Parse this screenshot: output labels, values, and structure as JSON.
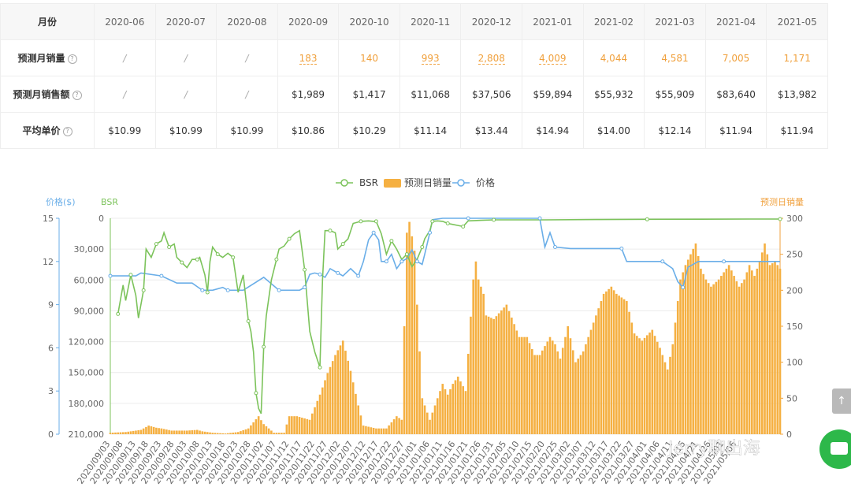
{
  "table": {
    "header_label": "月份",
    "months": [
      "2020-06",
      "2020-07",
      "2020-08",
      "2020-09",
      "2020-10",
      "2020-11",
      "2020-12",
      "2021-01",
      "2021-02",
      "2021-03",
      "2021-04",
      "2021-05"
    ],
    "rows": [
      {
        "label": "预测月销量",
        "help": "?",
        "values": [
          "/",
          "/",
          "/",
          "183",
          "140",
          "993",
          "2,808",
          "4,009",
          "4,044",
          "4,581",
          "7,005",
          "1,171"
        ],
        "dashed": [
          false,
          false,
          false,
          true,
          false,
          true,
          true,
          true,
          false,
          false,
          false,
          false
        ],
        "orange": true
      },
      {
        "label": "预测月销售额",
        "help": "?",
        "values": [
          "/",
          "/",
          "/",
          "$1,989",
          "$1,417",
          "$11,068",
          "$37,506",
          "$59,894",
          "$55,932",
          "$55,909",
          "$83,640",
          "$13,982"
        ],
        "orange": false
      },
      {
        "label": "平均单价",
        "help": "?",
        "values": [
          "$10.99",
          "$10.99",
          "$10.99",
          "$10.86",
          "$10.29",
          "$11.14",
          "$13.44",
          "$14.94",
          "$14.00",
          "$12.14",
          "$11.94",
          "$11.94"
        ],
        "orange": false
      }
    ]
  },
  "chart_data": {
    "type": "bar",
    "legend": [
      "BSR",
      "预测日销量",
      "价格"
    ],
    "legend_placement": "top-center",
    "colors": {
      "bsr": "#7cc35b",
      "sales": "#f5b042",
      "price": "#6aaee8"
    },
    "axes": {
      "price": {
        "label": "价格($)",
        "min": 0,
        "max": 15,
        "ticks": [
          0,
          3,
          6,
          9,
          12,
          15
        ],
        "side": "left"
      },
      "bsr": {
        "label": "BSR",
        "min": 0,
        "max": 210000,
        "inverted": true,
        "ticks": [
          0,
          30000,
          60000,
          90000,
          120000,
          150000,
          180000,
          210000
        ],
        "tick_labels": [
          "0",
          "30,000",
          "60,000",
          "90,000",
          "120,000",
          "150,000",
          "180,000",
          "210,000"
        ],
        "side": "left"
      },
      "sales": {
        "label": "预测日销量",
        "min": 0,
        "max": 300,
        "ticks": [
          0,
          50,
          100,
          150,
          200,
          250,
          300
        ],
        "side": "right"
      }
    },
    "x_start": "2020/09/03",
    "x_end": "2021/05/13",
    "x_tick_labels": [
      "2020/09/03",
      "2020/09/08",
      "2020/09/13",
      "2020/09/18",
      "2020/09/23",
      "2020/09/28",
      "2020/10/03",
      "2020/10/08",
      "2020/10/13",
      "2020/10/18",
      "2020/10/23",
      "2020/10/28",
      "2020/11/02",
      "2020/11/07",
      "2020/11/12",
      "2020/11/17",
      "2020/11/22",
      "2020/11/27",
      "2020/12/02",
      "2020/12/07",
      "2020/12/12",
      "2020/12/17",
      "2020/12/22",
      "2020/12/27",
      "2021/01/01",
      "2021/01/06",
      "2021/01/11",
      "2021/01/16",
      "2021/01/21",
      "2021/01/26",
      "2021/01/31",
      "2021/02/05",
      "2021/02/10",
      "2021/02/15",
      "2021/02/20",
      "2021/02/25",
      "2021/03/02",
      "2021/03/07",
      "2021/03/12",
      "2021/03/17",
      "2021/03/22",
      "2021/03/27",
      "2021/04/01",
      "2021/04/06",
      "2021/04/11",
      "2021/04/16",
      "2021/04/21",
      "2021/04/26",
      "2021/05/01",
      "2021/05/06"
    ],
    "sales_bars": [
      [
        0,
        2
      ],
      [
        6,
        3
      ],
      [
        12,
        6
      ],
      [
        15,
        12
      ],
      [
        18,
        9
      ],
      [
        20,
        8
      ],
      [
        24,
        5
      ],
      [
        30,
        5
      ],
      [
        34,
        6
      ],
      [
        36,
        4
      ],
      [
        40,
        2
      ],
      [
        45,
        1
      ],
      [
        50,
        3
      ],
      [
        54,
        8
      ],
      [
        58,
        25
      ],
      [
        60,
        14
      ],
      [
        64,
        2
      ],
      [
        68,
        2
      ],
      [
        70,
        25
      ],
      [
        73,
        25
      ],
      [
        78,
        20
      ],
      [
        82,
        55
      ],
      [
        85,
        85
      ],
      [
        88,
        110
      ],
      [
        91,
        130
      ],
      [
        94,
        88
      ],
      [
        97,
        40
      ],
      [
        99,
        12
      ],
      [
        104,
        8
      ],
      [
        108,
        8
      ],
      [
        112,
        25
      ],
      [
        114,
        20
      ],
      [
        116,
        280
      ],
      [
        117,
        295
      ],
      [
        118,
        275
      ],
      [
        119,
        255
      ],
      [
        120,
        180
      ],
      [
        122,
        50
      ],
      [
        125,
        20
      ],
      [
        127,
        40
      ],
      [
        130,
        70
      ],
      [
        132,
        55
      ],
      [
        134,
        70
      ],
      [
        136,
        80
      ],
      [
        139,
        60
      ],
      [
        142,
        215
      ],
      [
        143,
        240
      ],
      [
        144,
        215
      ],
      [
        146,
        195
      ],
      [
        147,
        165
      ],
      [
        150,
        160
      ],
      [
        155,
        180
      ],
      [
        160,
        135
      ],
      [
        163,
        135
      ],
      [
        166,
        110
      ],
      [
        168,
        110
      ],
      [
        172,
        135
      ],
      [
        174,
        125
      ],
      [
        176,
        105
      ],
      [
        179,
        150
      ],
      [
        182,
        100
      ],
      [
        185,
        115
      ],
      [
        188,
        145
      ],
      [
        191,
        175
      ],
      [
        193,
        195
      ],
      [
        196,
        205
      ],
      [
        198,
        195
      ],
      [
        202,
        185
      ],
      [
        205,
        140
      ],
      [
        208,
        130
      ],
      [
        212,
        145
      ],
      [
        215,
        120
      ],
      [
        218,
        90
      ],
      [
        220,
        125
      ],
      [
        223,
        215
      ],
      [
        225,
        235
      ],
      [
        227,
        250
      ],
      [
        229,
        265
      ],
      [
        231,
        230
      ],
      [
        233,
        215
      ],
      [
        235,
        205
      ],
      [
        238,
        215
      ],
      [
        240,
        225
      ],
      [
        242,
        235
      ],
      [
        244,
        220
      ],
      [
        246,
        205
      ],
      [
        248,
        215
      ],
      [
        250,
        235
      ],
      [
        252,
        220
      ],
      [
        254,
        240
      ],
      [
        256,
        265
      ],
      [
        258,
        235
      ],
      [
        260,
        240
      ],
      [
        262,
        230
      ]
    ],
    "bsr_line": [
      [
        3,
        93000
      ],
      [
        5,
        65000
      ],
      [
        6,
        80000
      ],
      [
        8,
        55000
      ],
      [
        10,
        75000
      ],
      [
        11,
        97000
      ],
      [
        13,
        70000
      ],
      [
        14,
        30000
      ],
      [
        16,
        38000
      ],
      [
        18,
        25000
      ],
      [
        20,
        22000
      ],
      [
        21,
        14000
      ],
      [
        23,
        28000
      ],
      [
        25,
        25000
      ],
      [
        26,
        38000
      ],
      [
        28,
        43000
      ],
      [
        30,
        48000
      ],
      [
        32,
        40000
      ],
      [
        34,
        40000
      ],
      [
        35,
        38000
      ],
      [
        37,
        55000
      ],
      [
        38,
        72000
      ],
      [
        39,
        42000
      ],
      [
        40,
        28000
      ],
      [
        42,
        35000
      ],
      [
        44,
        38000
      ],
      [
        46,
        34000
      ],
      [
        48,
        38000
      ],
      [
        50,
        72000
      ],
      [
        52,
        55000
      ],
      [
        54,
        100000
      ],
      [
        55,
        110000
      ],
      [
        56,
        130000
      ],
      [
        57,
        170000
      ],
      [
        58,
        185000
      ],
      [
        59,
        190000
      ],
      [
        60,
        125000
      ],
      [
        61,
        95000
      ],
      [
        63,
        60000
      ],
      [
        65,
        40000
      ],
      [
        66,
        30000
      ],
      [
        68,
        27000
      ],
      [
        70,
        20000
      ],
      [
        72,
        15000
      ],
      [
        74,
        12000
      ],
      [
        76,
        50000
      ],
      [
        78,
        110000
      ],
      [
        80,
        130000
      ],
      [
        82,
        145000
      ],
      [
        83,
        60000
      ],
      [
        84,
        12000
      ],
      [
        86,
        12000
      ],
      [
        88,
        14000
      ],
      [
        89,
        30000
      ],
      [
        91,
        25000
      ],
      [
        93,
        20000
      ],
      [
        95,
        5000
      ],
      [
        98,
        3000
      ],
      [
        101,
        2500
      ],
      [
        103,
        3000
      ],
      [
        104,
        3000
      ],
      [
        106,
        15000
      ],
      [
        108,
        35000
      ],
      [
        110,
        22000
      ],
      [
        112,
        30000
      ],
      [
        114,
        40000
      ],
      [
        116,
        35000
      ],
      [
        118,
        47000
      ],
      [
        120,
        40000
      ],
      [
        122,
        28000
      ],
      [
        123,
        20000
      ],
      [
        125,
        12000
      ],
      [
        126,
        3000
      ],
      [
        128,
        2500
      ],
      [
        130,
        3000
      ],
      [
        132,
        5000
      ],
      [
        134,
        6000
      ],
      [
        136,
        7000
      ],
      [
        138,
        8000
      ],
      [
        140,
        2500
      ],
      [
        145,
        2000
      ],
      [
        150,
        1500
      ],
      [
        170,
        1500
      ],
      [
        190,
        1200
      ],
      [
        210,
        1000
      ],
      [
        230,
        900
      ],
      [
        250,
        800
      ],
      [
        262,
        800
      ]
    ],
    "price_line": [
      [
        0,
        11
      ],
      [
        10,
        11
      ],
      [
        12,
        11.2
      ],
      [
        20,
        11
      ],
      [
        26,
        10.5
      ],
      [
        32,
        10.5
      ],
      [
        36,
        10
      ],
      [
        40,
        10
      ],
      [
        44,
        10.2
      ],
      [
        46,
        10
      ],
      [
        52,
        10
      ],
      [
        60,
        10.9
      ],
      [
        66,
        10
      ],
      [
        70,
        10
      ],
      [
        74,
        10
      ],
      [
        76,
        10.2
      ],
      [
        78,
        11.1
      ],
      [
        80,
        11.2
      ],
      [
        82,
        11.1
      ],
      [
        84,
        10.9
      ],
      [
        86,
        11.5
      ],
      [
        89,
        11.2
      ],
      [
        91,
        11
      ],
      [
        94,
        11.5
      ],
      [
        97,
        11
      ],
      [
        99,
        12
      ],
      [
        101,
        13.5
      ],
      [
        103,
        14
      ],
      [
        105,
        13.5
      ],
      [
        106,
        12
      ],
      [
        108,
        12
      ],
      [
        110,
        12.5
      ],
      [
        112,
        11.5
      ],
      [
        114,
        12
      ],
      [
        116,
        12.2
      ],
      [
        118,
        12.8
      ],
      [
        120,
        12
      ],
      [
        122,
        11.8
      ],
      [
        123,
        12.5
      ],
      [
        125,
        14
      ],
      [
        126,
        14.9
      ],
      [
        130,
        15
      ],
      [
        140,
        15
      ],
      [
        150,
        15
      ],
      [
        160,
        15
      ],
      [
        168,
        15
      ],
      [
        170,
        13
      ],
      [
        172,
        14
      ],
      [
        174,
        13
      ],
      [
        180,
        12.9
      ],
      [
        190,
        12.9
      ],
      [
        200,
        12.9
      ],
      [
        202,
        12
      ],
      [
        208,
        12
      ],
      [
        216,
        12
      ],
      [
        220,
        11.5
      ],
      [
        222,
        10.6
      ],
      [
        224,
        10.2
      ],
      [
        226,
        11.6
      ],
      [
        230,
        12
      ],
      [
        240,
        12
      ],
      [
        250,
        12
      ],
      [
        262,
        12
      ]
    ]
  },
  "widgets": {
    "scroll_top_icon": "arrow-up-icon",
    "chat_icon": "chat-icon",
    "watermark": "Jerry聊出海"
  }
}
